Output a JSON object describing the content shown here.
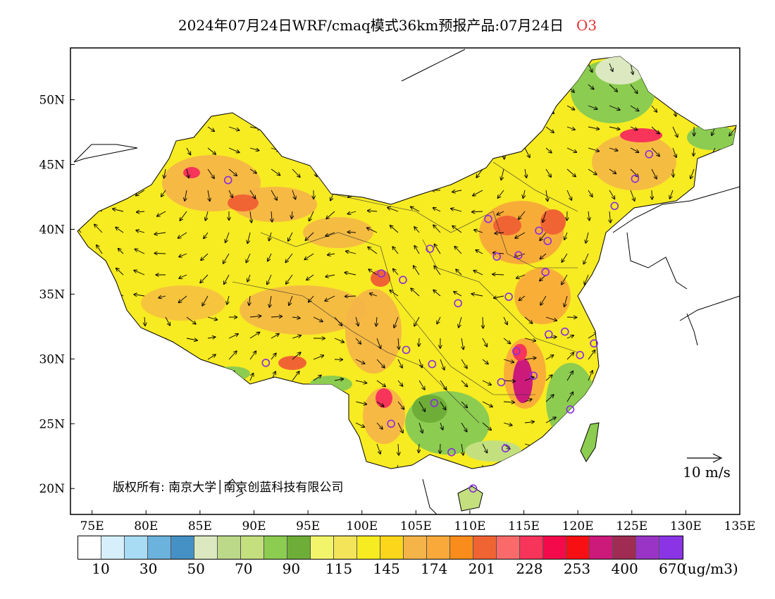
{
  "title": {
    "main": "2024年07月24日WRF/cmaq模式36km预报产品:07月24日",
    "species": "O3"
  },
  "map": {
    "lat_labels": [
      "50N",
      "45N",
      "40N",
      "35N",
      "30N",
      "25N",
      "20N"
    ],
    "lon_labels": [
      "75E",
      "80E",
      "85E",
      "90E",
      "95E",
      "100E",
      "105E",
      "110E",
      "115E",
      "120E",
      "125E",
      "130E",
      "135E"
    ],
    "copyright": "版权所有: 南京大学│南京创蓝科技有限公司",
    "wind_scale": "10 m/s"
  },
  "colorbar": {
    "colors": [
      "#ffffff",
      "#d6effa",
      "#a8dcf5",
      "#6bb2dc",
      "#4591c5",
      "#dce9c0",
      "#bcd98a",
      "#c4e07e",
      "#8ccc50",
      "#6eae38",
      "#f2f56a",
      "#f4e45a",
      "#f7eb22",
      "#fbd61a",
      "#f5b448",
      "#f8a93a",
      "#f98c1a",
      "#f06434",
      "#fa6a6a",
      "#f7345a",
      "#f40a4a",
      "#f80f14",
      "#cb1a7a",
      "#a02c54",
      "#9a34c6",
      "#8a34e6"
    ],
    "labels": [
      "10",
      "30",
      "50",
      "70",
      "90",
      "115",
      "145",
      "174",
      "201",
      "228",
      "253",
      "400",
      "670"
    ],
    "unit": "(ug/m3)"
  },
  "stations": [
    {
      "lon": 87.6,
      "lat": 43.8
    },
    {
      "lon": 101.8,
      "lat": 36.6
    },
    {
      "lon": 103.8,
      "lat": 36.1
    },
    {
      "lon": 106.3,
      "lat": 38.5
    },
    {
      "lon": 111.7,
      "lat": 40.8
    },
    {
      "lon": 116.4,
      "lat": 39.9
    },
    {
      "lon": 117.2,
      "lat": 39.1
    },
    {
      "lon": 114.5,
      "lat": 38.0
    },
    {
      "lon": 112.5,
      "lat": 37.9
    },
    {
      "lon": 117.0,
      "lat": 36.7
    },
    {
      "lon": 113.6,
      "lat": 34.8
    },
    {
      "lon": 108.9,
      "lat": 34.3
    },
    {
      "lon": 104.1,
      "lat": 30.7
    },
    {
      "lon": 106.5,
      "lat": 29.6
    },
    {
      "lon": 114.3,
      "lat": 30.6
    },
    {
      "lon": 117.3,
      "lat": 31.9
    },
    {
      "lon": 118.8,
      "lat": 32.1
    },
    {
      "lon": 120.2,
      "lat": 30.3
    },
    {
      "lon": 121.5,
      "lat": 31.2
    },
    {
      "lon": 115.9,
      "lat": 28.7
    },
    {
      "lon": 112.9,
      "lat": 28.2
    },
    {
      "lon": 119.3,
      "lat": 26.1
    },
    {
      "lon": 113.3,
      "lat": 23.1
    },
    {
      "lon": 108.3,
      "lat": 22.8
    },
    {
      "lon": 106.7,
      "lat": 26.6
    },
    {
      "lon": 102.7,
      "lat": 25.0
    },
    {
      "lon": 91.1,
      "lat": 29.7
    },
    {
      "lon": 110.3,
      "lat": 20.0
    },
    {
      "lon": 123.4,
      "lat": 41.8
    },
    {
      "lon": 125.3,
      "lat": 43.9
    },
    {
      "lon": 126.6,
      "lat": 45.8
    }
  ]
}
